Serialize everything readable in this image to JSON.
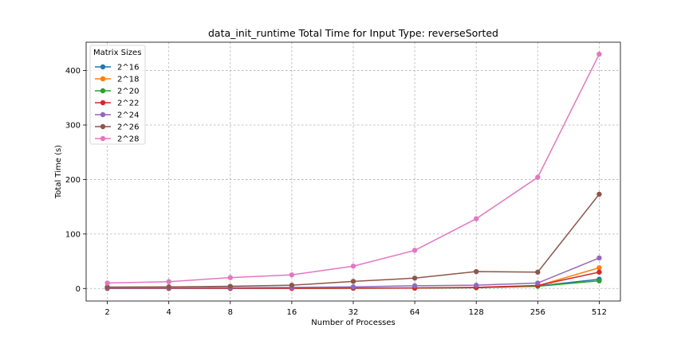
{
  "chart_data": {
    "type": "line",
    "title": "data_init_runtime Total Time for Input Type: reverseSorted",
    "xlabel": "Number of Processes",
    "ylabel": "Total Time (s)",
    "categories": [
      "2",
      "4",
      "8",
      "16",
      "32",
      "64",
      "128",
      "256",
      "512"
    ],
    "x_scale": "log2",
    "ylim": [
      -23,
      452
    ],
    "yticks": [
      0,
      100,
      200,
      300,
      400
    ],
    "grid": true,
    "legend": {
      "title": "Matrix Sizes",
      "placement": "top-left"
    },
    "series": [
      {
        "name": "2^16",
        "color": "#1f77b4",
        "values": [
          0.3,
          0.3,
          0.3,
          0.4,
          0.6,
          0.8,
          1.5,
          4.5,
          17
        ]
      },
      {
        "name": "2^18",
        "color": "#ff7f0e",
        "values": [
          0.3,
          0.3,
          0.3,
          0.4,
          0.6,
          0.9,
          1.8,
          5,
          38
        ]
      },
      {
        "name": "2^20",
        "color": "#2ca02c",
        "values": [
          0.3,
          0.3,
          0.3,
          0.4,
          0.6,
          0.8,
          1.5,
          4,
          14
        ]
      },
      {
        "name": "2^22",
        "color": "#d62728",
        "values": [
          0.3,
          0.3,
          0.3,
          0.4,
          0.7,
          1,
          2,
          5.5,
          30
        ]
      },
      {
        "name": "2^24",
        "color": "#9467bd",
        "values": [
          1,
          1.2,
          1.5,
          2,
          3,
          5,
          6,
          10,
          56
        ]
      },
      {
        "name": "2^26",
        "color": "#8c564b",
        "values": [
          2.5,
          3,
          4,
          6,
          13,
          19,
          31,
          30,
          173
        ]
      },
      {
        "name": "2^28",
        "color": "#e377c2",
        "values": [
          10,
          12.5,
          20,
          25,
          41,
          70,
          128,
          204,
          430
        ]
      }
    ]
  }
}
